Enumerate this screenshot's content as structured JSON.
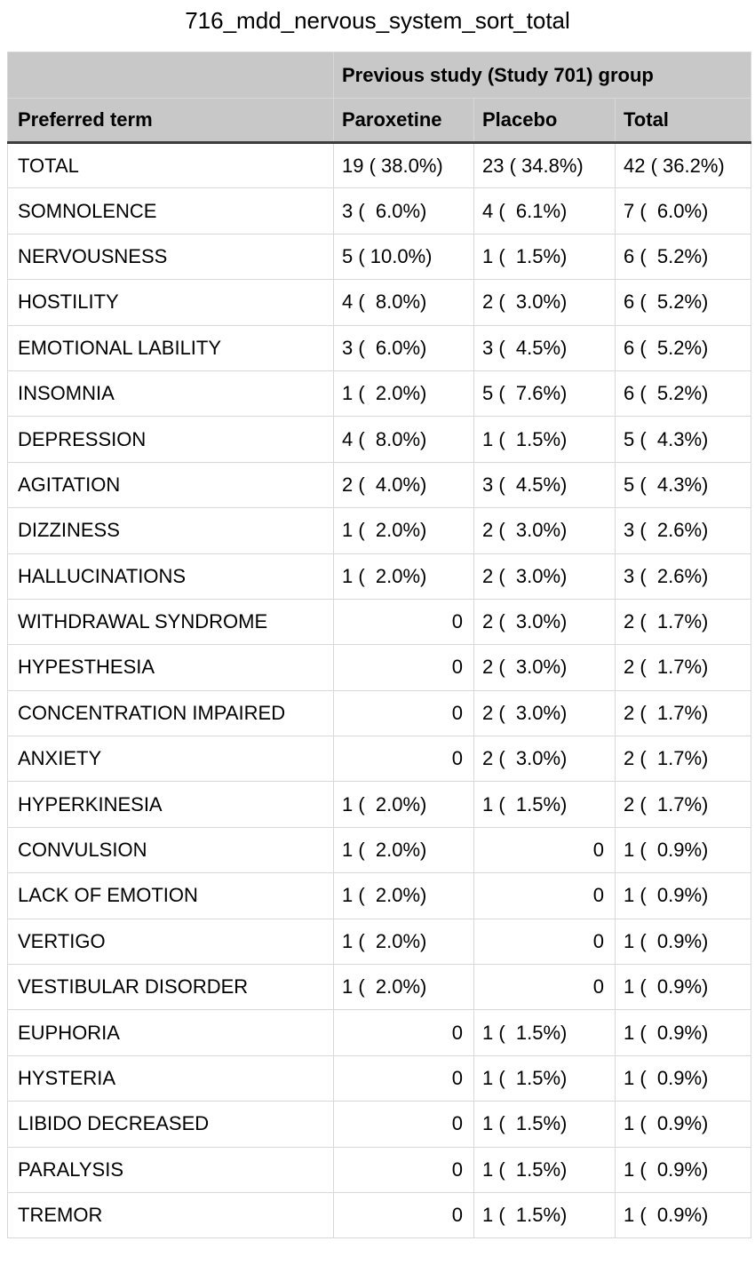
{
  "title": "716_mdd_nervous_system_sort_total",
  "table": {
    "group_header": "Previous study (Study 701) group",
    "columns": [
      "Preferred term",
      "Paroxetine",
      "Placebo",
      "Total"
    ],
    "rows": [
      [
        "TOTAL",
        "19 ( 38.0%)",
        "23 ( 34.8%)",
        "42 ( 36.2%)"
      ],
      [
        "SOMNOLENCE",
        "3 (  6.0%)",
        "4 (  6.1%)",
        "7 (  6.0%)"
      ],
      [
        "NERVOUSNESS",
        "5 ( 10.0%)",
        "1 (  1.5%)",
        "6 (  5.2%)"
      ],
      [
        "HOSTILITY",
        "4 (  8.0%)",
        "2 (  3.0%)",
        "6 (  5.2%)"
      ],
      [
        "EMOTIONAL LABILITY",
        "3 (  6.0%)",
        "3 (  4.5%)",
        "6 (  5.2%)"
      ],
      [
        "INSOMNIA",
        "1 (  2.0%)",
        "5 (  7.6%)",
        "6 (  5.2%)"
      ],
      [
        "DEPRESSION",
        "4 (  8.0%)",
        "1 (  1.5%)",
        "5 (  4.3%)"
      ],
      [
        "AGITATION",
        "2 (  4.0%)",
        "3 (  4.5%)",
        "5 (  4.3%)"
      ],
      [
        "DIZZINESS",
        "1 (  2.0%)",
        "2 (  3.0%)",
        "3 (  2.6%)"
      ],
      [
        "HALLUCINATIONS",
        "1 (  2.0%)",
        "2 (  3.0%)",
        "3 (  2.6%)"
      ],
      [
        "WITHDRAWAL SYNDROME",
        "0",
        "2 (  3.0%)",
        "2 (  1.7%)"
      ],
      [
        "HYPESTHESIA",
        "0",
        "2 (  3.0%)",
        "2 (  1.7%)"
      ],
      [
        "CONCENTRATION IMPAIRED",
        "0",
        "2 (  3.0%)",
        "2 (  1.7%)"
      ],
      [
        "ANXIETY",
        "0",
        "2 (  3.0%)",
        "2 (  1.7%)"
      ],
      [
        "HYPERKINESIA",
        "1 (  2.0%)",
        "1 (  1.5%)",
        "2 (  1.7%)"
      ],
      [
        "CONVULSION",
        "1 (  2.0%)",
        "0",
        "1 (  0.9%)"
      ],
      [
        "LACK OF EMOTION",
        "1 (  2.0%)",
        "0",
        "1 (  0.9%)"
      ],
      [
        "VERTIGO",
        "1 (  2.0%)",
        "0",
        "1 (  0.9%)"
      ],
      [
        "VESTIBULAR DISORDER",
        "1 (  2.0%)",
        "0",
        "1 (  0.9%)"
      ],
      [
        "EUPHORIA",
        "0",
        "1 (  1.5%)",
        "1 (  0.9%)"
      ],
      [
        "HYSTERIA",
        "0",
        "1 (  1.5%)",
        "1 (  0.9%)"
      ],
      [
        "LIBIDO DECREASED",
        "0",
        "1 (  1.5%)",
        "1 (  0.9%)"
      ],
      [
        "PARALYSIS",
        "0",
        "1 (  1.5%)",
        "1 (  0.9%)"
      ],
      [
        "TREMOR",
        "0",
        "1 (  1.5%)",
        "1 (  0.9%)"
      ]
    ]
  },
  "colors": {
    "header_bg": "#c8c8c8",
    "grid_line": "#d8d8d8",
    "header_rule": "#3d3d3d",
    "text": "#000000",
    "background": "#ffffff"
  }
}
